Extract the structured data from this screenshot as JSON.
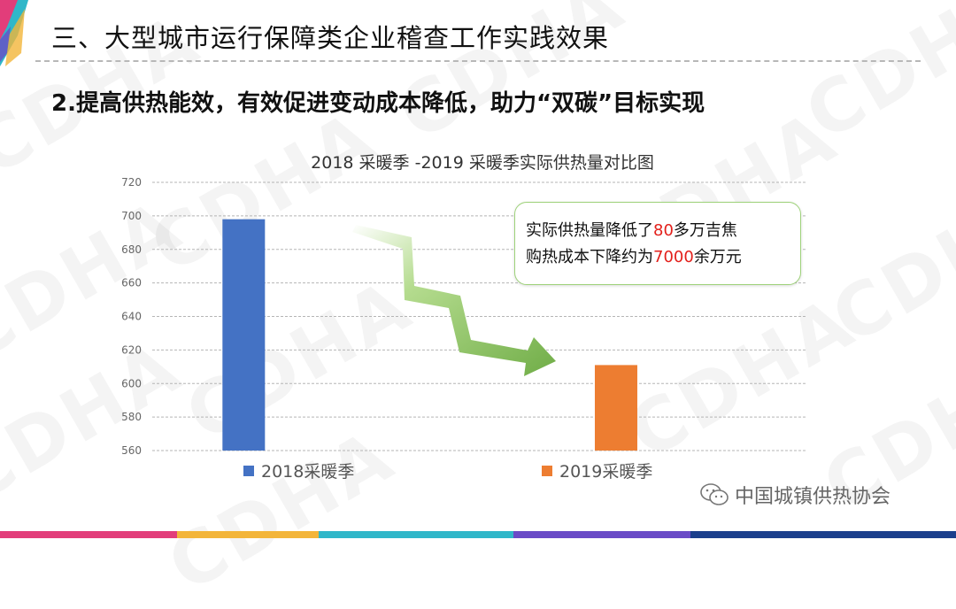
{
  "header": {
    "title": "三、大型城市运行保障类企业稽查工作实践效果",
    "subtitle": "2.提高供热能效，有效促进变动成本降低，助力“双碳”目标实现"
  },
  "callout": {
    "line1_prefix": "实际供热量降低了",
    "line1_value": "80",
    "line1_suffix": "多万吉焦",
    "line2_prefix": "购热成本下降约为",
    "line2_value": "7000",
    "line2_suffix": "余万元",
    "highlight_color": "#e3201b"
  },
  "footer": {
    "brand": "中国城镇供热协会",
    "icon": "wechat-icon"
  },
  "watermark": "CDHA",
  "chart_data": {
    "type": "bar",
    "title": "2018 采暖季 -2019 采暖季实际供热量对比图",
    "xlabel": "",
    "ylabel": "",
    "ylim": [
      560,
      720
    ],
    "yticks": [
      560,
      580,
      600,
      620,
      640,
      660,
      680,
      700,
      720
    ],
    "grid": true,
    "legend_position": "bottom",
    "series": [
      {
        "name": "2018采暖季",
        "values": [
          698
        ],
        "color": "#4472c4"
      },
      {
        "name": "2019采暖季",
        "values": [
          611
        ],
        "color": "#ed7d31"
      }
    ],
    "arrow": "decrease",
    "arrow_color": "#70ad47"
  }
}
